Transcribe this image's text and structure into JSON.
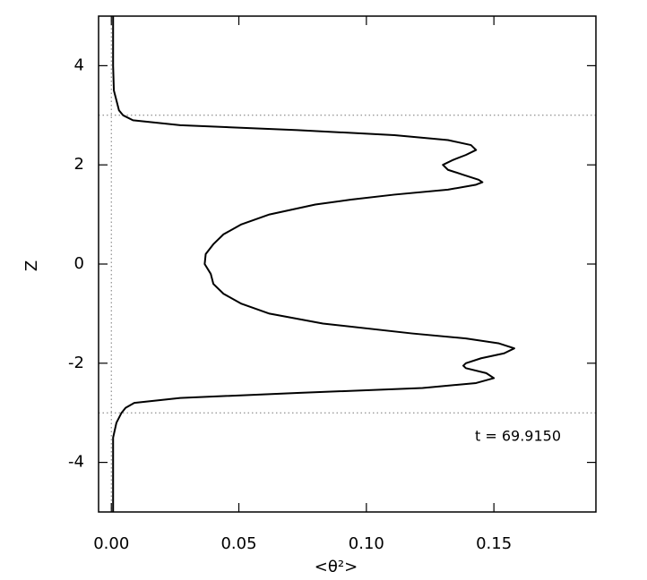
{
  "chart_data": {
    "type": "line",
    "xlabel": "<θ²>",
    "ylabel": "Z",
    "annotation": "t = 69.9150",
    "color": "#000000",
    "xlim": [
      -0.005,
      0.19
    ],
    "ylim": [
      -5,
      5
    ],
    "xticks": [
      {
        "value": 0,
        "label": "0.00"
      },
      0.05,
      {
        "value": 0.1,
        "label": "0.10"
      },
      0.15
    ],
    "yticks": [
      -4,
      -2,
      0,
      2,
      4
    ],
    "hlines": [
      3,
      -3
    ],
    "vlines": [
      0
    ],
    "y": [
      5,
      4,
      3.5,
      3.3,
      3.1,
      3.0,
      2.9,
      2.8,
      2.7,
      2.6,
      2.5,
      2.4,
      2.3,
      2.2,
      2.1,
      2.0,
      1.9,
      1.8,
      1.7,
      1.65,
      1.6,
      1.5,
      1.4,
      1.3,
      1.2,
      1.0,
      0.8,
      0.6,
      0.4,
      0.2,
      0.0,
      -0.2,
      -0.4,
      -0.6,
      -0.8,
      -1.0,
      -1.2,
      -1.4,
      -1.5,
      -1.6,
      -1.7,
      -1.8,
      -1.9,
      -2.0,
      -2.05,
      -2.1,
      -2.2,
      -2.3,
      -2.4,
      -2.5,
      -2.6,
      -2.7,
      -2.8,
      -2.9,
      -3.0,
      -3.2,
      -3.5,
      -4,
      -5
    ],
    "x": [
      0.0007,
      0.0007,
      0.001,
      0.002,
      0.003,
      0.0046,
      0.0085,
      0.027,
      0.073,
      0.111,
      0.132,
      0.141,
      0.143,
      0.139,
      0.134,
      0.13,
      0.132,
      0.138,
      0.144,
      0.1455,
      0.143,
      0.132,
      0.111,
      0.094,
      0.08,
      0.062,
      0.051,
      0.044,
      0.04,
      0.037,
      0.0366,
      0.039,
      0.04,
      0.044,
      0.051,
      0.062,
      0.083,
      0.118,
      0.139,
      0.152,
      0.158,
      0.154,
      0.145,
      0.139,
      0.138,
      0.139,
      0.147,
      0.15,
      0.143,
      0.122,
      0.073,
      0.027,
      0.009,
      0.0056,
      0.004,
      0.002,
      0.0007,
      0.0007,
      0.0007
    ]
  }
}
